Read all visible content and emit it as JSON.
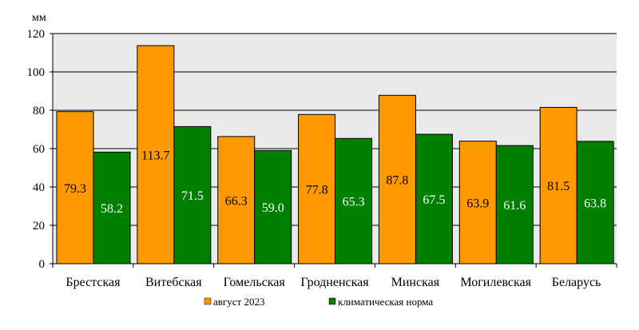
{
  "chart_data": {
    "type": "bar",
    "title": "",
    "xlabel": "",
    "ylabel": "мм",
    "ylim": [
      0,
      120
    ],
    "yticks": [
      0,
      20,
      40,
      60,
      80,
      100,
      120
    ],
    "grid": true,
    "legend_position": "bottom",
    "categories": [
      "Брестская",
      "Витебская",
      "Гомельская",
      "Гродненская",
      "Минская",
      "Могилевская",
      "Беларусь"
    ],
    "series": [
      {
        "name": "август 2023",
        "color": "#FF9900",
        "label_color": "#000000",
        "values": [
          79.3,
          113.7,
          66.3,
          77.8,
          87.8,
          63.9,
          81.5
        ],
        "labels": [
          "79.3",
          "113.7",
          "66.3",
          "77.8",
          "87.8",
          "63.9",
          "81.5"
        ]
      },
      {
        "name": "климатическая норма",
        "color": "#008000",
        "label_color": "#ffffff",
        "values": [
          58.2,
          71.5,
          59.0,
          65.3,
          67.5,
          61.6,
          63.8
        ],
        "labels": [
          "58.2",
          "71.5",
          "59.0",
          "65.3",
          "67.5",
          "61.6",
          "63.8"
        ]
      }
    ]
  }
}
